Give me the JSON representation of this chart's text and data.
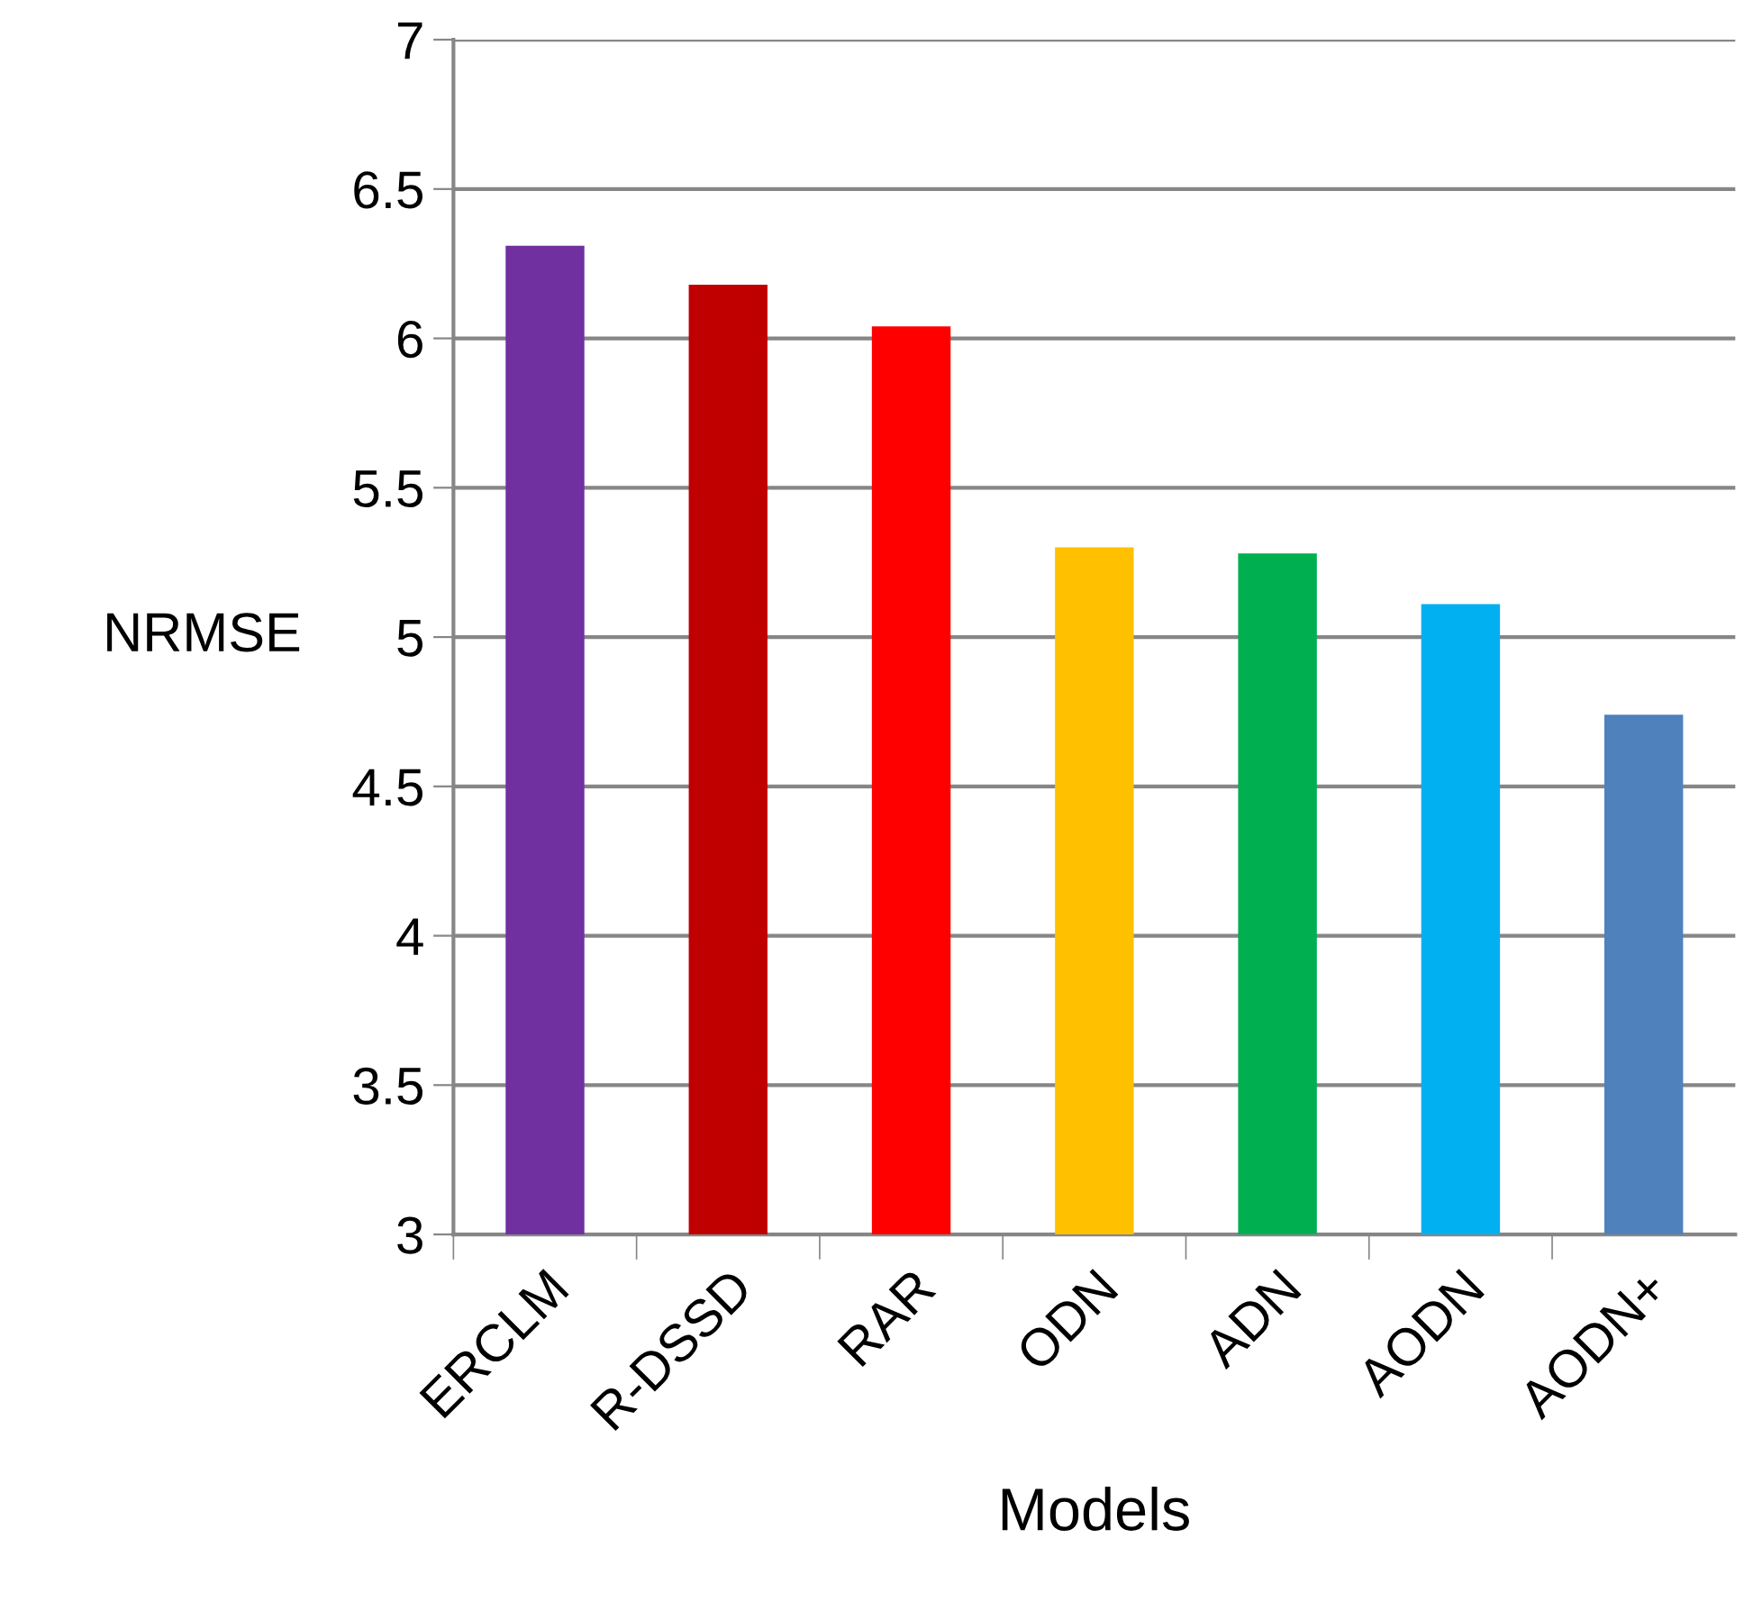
{
  "chart_data": {
    "type": "bar",
    "xlabel": "Models",
    "ylabel": "NRMSE",
    "categories": [
      "ERCLM",
      "R-DSSD",
      "RAR",
      "ODN",
      "ADN",
      "AODN",
      "AODN+"
    ],
    "values": [
      6.31,
      6.18,
      6.04,
      5.3,
      5.28,
      5.11,
      4.74
    ],
    "colors": [
      "#7030a0",
      "#c00000",
      "#ff0000",
      "#ffc000",
      "#00b050",
      "#00b0f0",
      "#4f81bd"
    ],
    "ylim": [
      3,
      7
    ],
    "yticks": [
      3,
      3.5,
      4,
      4.5,
      5,
      5.5,
      6,
      6.5,
      7
    ],
    "grid": "y",
    "legend": false
  }
}
